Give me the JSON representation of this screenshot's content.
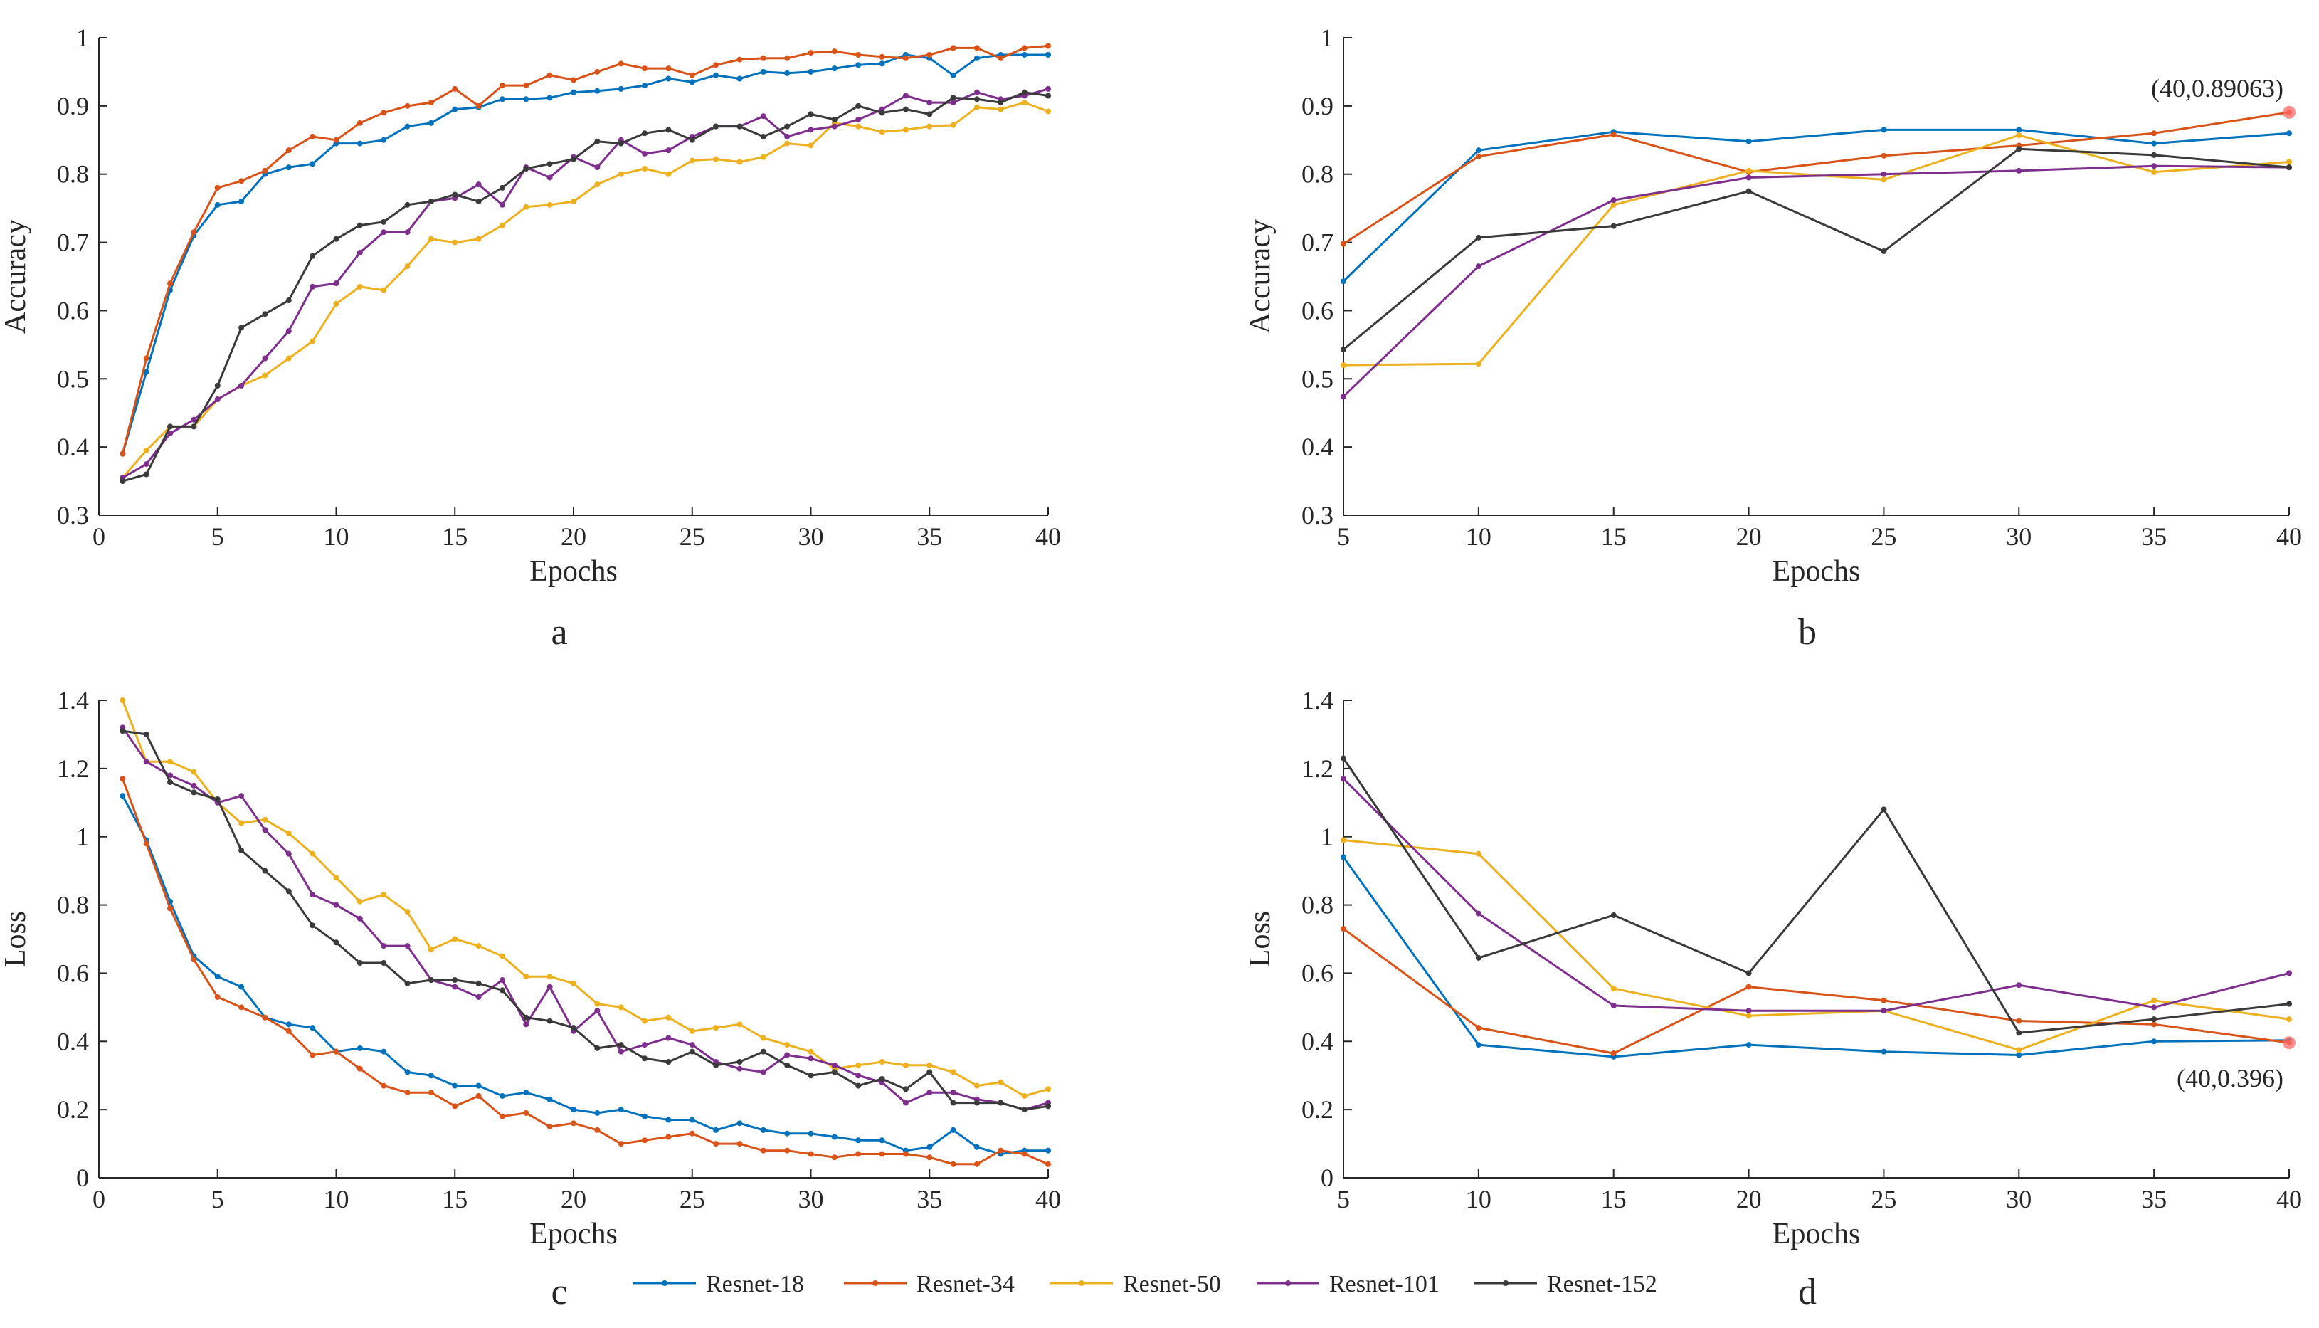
{
  "chart_data": [
    {
      "type": "line",
      "panel": "a",
      "panel_label": "a",
      "xlabel": "Epochs",
      "ylabel": "Accuracy",
      "xlim": [
        0,
        40
      ],
      "ylim": [
        0.3,
        1
      ],
      "xticks": [
        0,
        5,
        10,
        15,
        20,
        25,
        30,
        35,
        40
      ],
      "yticks": [
        0.3,
        0.4,
        0.5,
        0.6,
        0.7,
        0.8,
        0.9,
        1
      ],
      "ytick_labels": [
        "0.3",
        "0.4",
        "0.5",
        "0.6",
        "0.7",
        "0.8",
        "0.9",
        "1"
      ],
      "x": [
        1,
        2,
        3,
        4,
        5,
        6,
        7,
        8,
        9,
        10,
        11,
        12,
        13,
        14,
        15,
        16,
        17,
        18,
        19,
        20,
        21,
        22,
        23,
        24,
        25,
        26,
        27,
        28,
        29,
        30,
        31,
        32,
        33,
        34,
        35,
        36,
        37,
        38,
        39,
        40
      ],
      "series": [
        {
          "name": "Resnet-18",
          "values": [
            0.39,
            0.51,
            0.63,
            0.71,
            0.755,
            0.76,
            0.8,
            0.81,
            0.815,
            0.845,
            0.845,
            0.85,
            0.87,
            0.875,
            0.895,
            0.898,
            0.91,
            0.91,
            0.912,
            0.92,
            0.922,
            0.925,
            0.93,
            0.94,
            0.935,
            0.945,
            0.94,
            0.95,
            0.948,
            0.95,
            0.955,
            0.96,
            0.962,
            0.975,
            0.97,
            0.945,
            0.97,
            0.975,
            0.975,
            0.975
          ]
        },
        {
          "name": "Resnet-34",
          "values": [
            0.39,
            0.53,
            0.64,
            0.715,
            0.78,
            0.79,
            0.805,
            0.835,
            0.855,
            0.85,
            0.875,
            0.89,
            0.9,
            0.905,
            0.925,
            0.9,
            0.93,
            0.93,
            0.945,
            0.938,
            0.95,
            0.962,
            0.955,
            0.955,
            0.945,
            0.96,
            0.968,
            0.97,
            0.97,
            0.978,
            0.98,
            0.975,
            0.972,
            0.97,
            0.975,
            0.985,
            0.985,
            0.97,
            0.985,
            0.988
          ]
        },
        {
          "name": "Resnet-50",
          "values": [
            0.355,
            0.395,
            0.43,
            0.43,
            0.47,
            0.49,
            0.505,
            0.53,
            0.555,
            0.61,
            0.635,
            0.63,
            0.665,
            0.705,
            0.7,
            0.705,
            0.725,
            0.752,
            0.755,
            0.76,
            0.785,
            0.8,
            0.808,
            0.8,
            0.82,
            0.822,
            0.818,
            0.825,
            0.845,
            0.842,
            0.875,
            0.87,
            0.862,
            0.865,
            0.87,
            0.872,
            0.898,
            0.895,
            0.905,
            0.892
          ]
        },
        {
          "name": "Resnet-101",
          "values": [
            0.355,
            0.375,
            0.42,
            0.44,
            0.47,
            0.49,
            0.53,
            0.57,
            0.635,
            0.64,
            0.685,
            0.715,
            0.715,
            0.76,
            0.765,
            0.785,
            0.755,
            0.81,
            0.795,
            0.825,
            0.81,
            0.85,
            0.83,
            0.835,
            0.855,
            0.87,
            0.87,
            0.885,
            0.855,
            0.865,
            0.87,
            0.88,
            0.895,
            0.915,
            0.905,
            0.905,
            0.92,
            0.91,
            0.915,
            0.925
          ]
        },
        {
          "name": "Resnet-152",
          "values": [
            0.35,
            0.36,
            0.43,
            0.43,
            0.49,
            0.575,
            0.595,
            0.615,
            0.68,
            0.705,
            0.725,
            0.73,
            0.755,
            0.76,
            0.77,
            0.76,
            0.78,
            0.808,
            0.815,
            0.822,
            0.848,
            0.845,
            0.86,
            0.865,
            0.85,
            0.87,
            0.87,
            0.855,
            0.87,
            0.888,
            0.88,
            0.9,
            0.89,
            0.895,
            0.888,
            0.912,
            0.91,
            0.905,
            0.92,
            0.915
          ]
        }
      ]
    },
    {
      "type": "line",
      "panel": "b",
      "panel_label": "b",
      "xlabel": "Epochs",
      "ylabel": "Accuracy",
      "xlim": [
        5,
        40
      ],
      "ylim": [
        0.3,
        1
      ],
      "xticks": [
        5,
        10,
        15,
        20,
        25,
        30,
        35,
        40
      ],
      "yticks": [
        0.3,
        0.4,
        0.5,
        0.6,
        0.7,
        0.8,
        0.9,
        1
      ],
      "ytick_labels": [
        "0.3",
        "0.4",
        "0.5",
        "0.6",
        "0.7",
        "0.8",
        "0.9",
        "1"
      ],
      "x": [
        5,
        10,
        15,
        20,
        25,
        30,
        35,
        40
      ],
      "series": [
        {
          "name": "Resnet-18",
          "values": [
            0.643,
            0.835,
            0.862,
            0.848,
            0.865,
            0.865,
            0.845,
            0.86
          ]
        },
        {
          "name": "Resnet-34",
          "values": [
            0.698,
            0.826,
            0.858,
            0.803,
            0.827,
            0.842,
            0.86,
            0.89063
          ]
        },
        {
          "name": "Resnet-50",
          "values": [
            0.52,
            0.522,
            0.755,
            0.805,
            0.792,
            0.857,
            0.803,
            0.818
          ]
        },
        {
          "name": "Resnet-101",
          "values": [
            0.474,
            0.665,
            0.762,
            0.795,
            0.8,
            0.805,
            0.812,
            0.81
          ]
        },
        {
          "name": "Resnet-152",
          "values": [
            0.543,
            0.707,
            0.724,
            0.775,
            0.687,
            0.837,
            0.828,
            0.81
          ]
        }
      ],
      "annotation": {
        "text": "(40,0.89063)",
        "x": 40,
        "y": 0.89063
      }
    },
    {
      "type": "line",
      "panel": "c",
      "panel_label": "c",
      "xlabel": "Epochs",
      "ylabel": "Loss",
      "xlim": [
        0,
        40
      ],
      "ylim": [
        0,
        1.4
      ],
      "xticks": [
        0,
        5,
        10,
        15,
        20,
        25,
        30,
        35,
        40
      ],
      "yticks": [
        0,
        0.2,
        0.4,
        0.6,
        0.8,
        1,
        1.2,
        1.4
      ],
      "ytick_labels": [
        "0",
        "0.2",
        "0.4",
        "0.6",
        "0.8",
        "1",
        "1.2",
        "1.4"
      ],
      "x": [
        1,
        2,
        3,
        4,
        5,
        6,
        7,
        8,
        9,
        10,
        11,
        12,
        13,
        14,
        15,
        16,
        17,
        18,
        19,
        20,
        21,
        22,
        23,
        24,
        25,
        26,
        27,
        28,
        29,
        30,
        31,
        32,
        33,
        34,
        35,
        36,
        37,
        38,
        39,
        40
      ],
      "series": [
        {
          "name": "Resnet-18",
          "values": [
            1.12,
            0.99,
            0.81,
            0.65,
            0.59,
            0.56,
            0.47,
            0.45,
            0.44,
            0.37,
            0.38,
            0.37,
            0.31,
            0.3,
            0.27,
            0.27,
            0.24,
            0.25,
            0.23,
            0.2,
            0.19,
            0.2,
            0.18,
            0.17,
            0.17,
            0.14,
            0.16,
            0.14,
            0.13,
            0.13,
            0.12,
            0.11,
            0.11,
            0.08,
            0.09,
            0.14,
            0.09,
            0.07,
            0.08,
            0.08
          ]
        },
        {
          "name": "Resnet-34",
          "values": [
            1.17,
            0.98,
            0.79,
            0.64,
            0.53,
            0.5,
            0.47,
            0.43,
            0.36,
            0.37,
            0.32,
            0.27,
            0.25,
            0.25,
            0.21,
            0.24,
            0.18,
            0.19,
            0.15,
            0.16,
            0.14,
            0.1,
            0.11,
            0.12,
            0.13,
            0.1,
            0.1,
            0.08,
            0.08,
            0.07,
            0.06,
            0.07,
            0.07,
            0.07,
            0.06,
            0.04,
            0.04,
            0.08,
            0.07,
            0.04
          ]
        },
        {
          "name": "Resnet-50",
          "values": [
            1.4,
            1.22,
            1.22,
            1.19,
            1.1,
            1.04,
            1.05,
            1.01,
            0.95,
            0.88,
            0.81,
            0.83,
            0.78,
            0.67,
            0.7,
            0.68,
            0.65,
            0.59,
            0.59,
            0.57,
            0.51,
            0.5,
            0.46,
            0.47,
            0.43,
            0.44,
            0.45,
            0.41,
            0.39,
            0.37,
            0.32,
            0.33,
            0.34,
            0.33,
            0.33,
            0.31,
            0.27,
            0.28,
            0.24,
            0.26
          ]
        },
        {
          "name": "Resnet-101",
          "values": [
            1.32,
            1.22,
            1.18,
            1.15,
            1.1,
            1.12,
            1.02,
            0.95,
            0.83,
            0.8,
            0.76,
            0.68,
            0.68,
            0.58,
            0.56,
            0.53,
            0.58,
            0.45,
            0.56,
            0.43,
            0.49,
            0.37,
            0.39,
            0.41,
            0.39,
            0.34,
            0.32,
            0.31,
            0.36,
            0.35,
            0.33,
            0.3,
            0.28,
            0.22,
            0.25,
            0.25,
            0.23,
            0.22,
            0.2,
            0.22
          ]
        },
        {
          "name": "Resnet-152",
          "values": [
            1.31,
            1.3,
            1.16,
            1.13,
            1.11,
            0.96,
            0.9,
            0.84,
            0.74,
            0.69,
            0.63,
            0.63,
            0.57,
            0.58,
            0.58,
            0.57,
            0.55,
            0.47,
            0.46,
            0.44,
            0.38,
            0.39,
            0.35,
            0.34,
            0.37,
            0.33,
            0.34,
            0.37,
            0.33,
            0.3,
            0.31,
            0.27,
            0.29,
            0.26,
            0.31,
            0.22,
            0.22,
            0.22,
            0.2,
            0.21
          ]
        }
      ]
    },
    {
      "type": "line",
      "panel": "d",
      "panel_label": "d",
      "xlabel": "Epochs",
      "ylabel": "Loss",
      "xlim": [
        5,
        40
      ],
      "ylim": [
        0,
        1.4
      ],
      "xticks": [
        5,
        10,
        15,
        20,
        25,
        30,
        35,
        40
      ],
      "yticks": [
        0,
        0.2,
        0.4,
        0.6,
        0.8,
        1,
        1.2,
        1.4
      ],
      "ytick_labels": [
        "0",
        "0.2",
        "0.4",
        "0.6",
        "0.8",
        "1",
        "1.2",
        "1.4"
      ],
      "x": [
        5,
        10,
        15,
        20,
        25,
        30,
        35,
        40
      ],
      "series": [
        {
          "name": "Resnet-18",
          "values": [
            0.94,
            0.39,
            0.355,
            0.39,
            0.37,
            0.36,
            0.4,
            0.403
          ]
        },
        {
          "name": "Resnet-34",
          "values": [
            0.73,
            0.44,
            0.365,
            0.56,
            0.52,
            0.46,
            0.45,
            0.396
          ]
        },
        {
          "name": "Resnet-50",
          "values": [
            0.99,
            0.95,
            0.555,
            0.475,
            0.49,
            0.375,
            0.52,
            0.465
          ]
        },
        {
          "name": "Resnet-101",
          "values": [
            1.17,
            0.775,
            0.505,
            0.49,
            0.49,
            0.565,
            0.5,
            0.6
          ]
        },
        {
          "name": "Resnet-152",
          "values": [
            1.23,
            0.645,
            0.77,
            0.6,
            1.08,
            0.425,
            0.465,
            0.51
          ]
        }
      ],
      "annotation": {
        "text": "(40,0.396)",
        "x": 40,
        "y": 0.396
      }
    }
  ],
  "legend": {
    "items": [
      "Resnet-18",
      "Resnet-34",
      "Resnet-50",
      "Resnet-101",
      "Resnet-152"
    ]
  },
  "colors": {
    "Resnet-18": "#0072BD",
    "Resnet-34": "#D95319",
    "Resnet-50": "#EDB120",
    "Resnet-101": "#7E2F8E",
    "Resnet-152": "#3A3A3A",
    "axis": "#262626",
    "highlight": "#FF6A6A"
  }
}
